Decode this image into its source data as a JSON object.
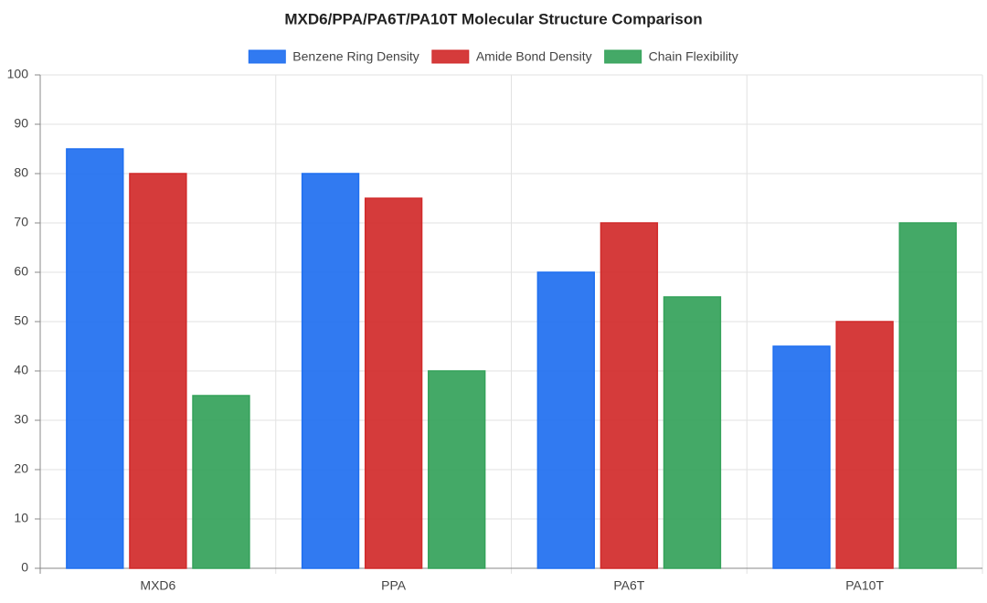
{
  "chart_data": {
    "type": "bar",
    "title": "MXD6/PPA/PA6T/PA10T Molecular Structure Comparison",
    "categories": [
      "MXD6",
      "PPA",
      "PA6T",
      "PA10T"
    ],
    "series": [
      {
        "name": "Benzene Ring Density",
        "color": "#1f6ff0",
        "values": [
          85,
          80,
          60,
          45
        ]
      },
      {
        "name": "Amide Bond Density",
        "color": "#d12a2a",
        "values": [
          80,
          75,
          70,
          50
        ]
      },
      {
        "name": "Chain Flexibility",
        "color": "#34a25a",
        "values": [
          35,
          40,
          55,
          70
        ]
      }
    ],
    "ylim": [
      0,
      100
    ],
    "yticks": [
      0,
      10,
      20,
      30,
      40,
      50,
      60,
      70,
      80,
      90,
      100
    ],
    "grid": true,
    "legend": "top"
  }
}
